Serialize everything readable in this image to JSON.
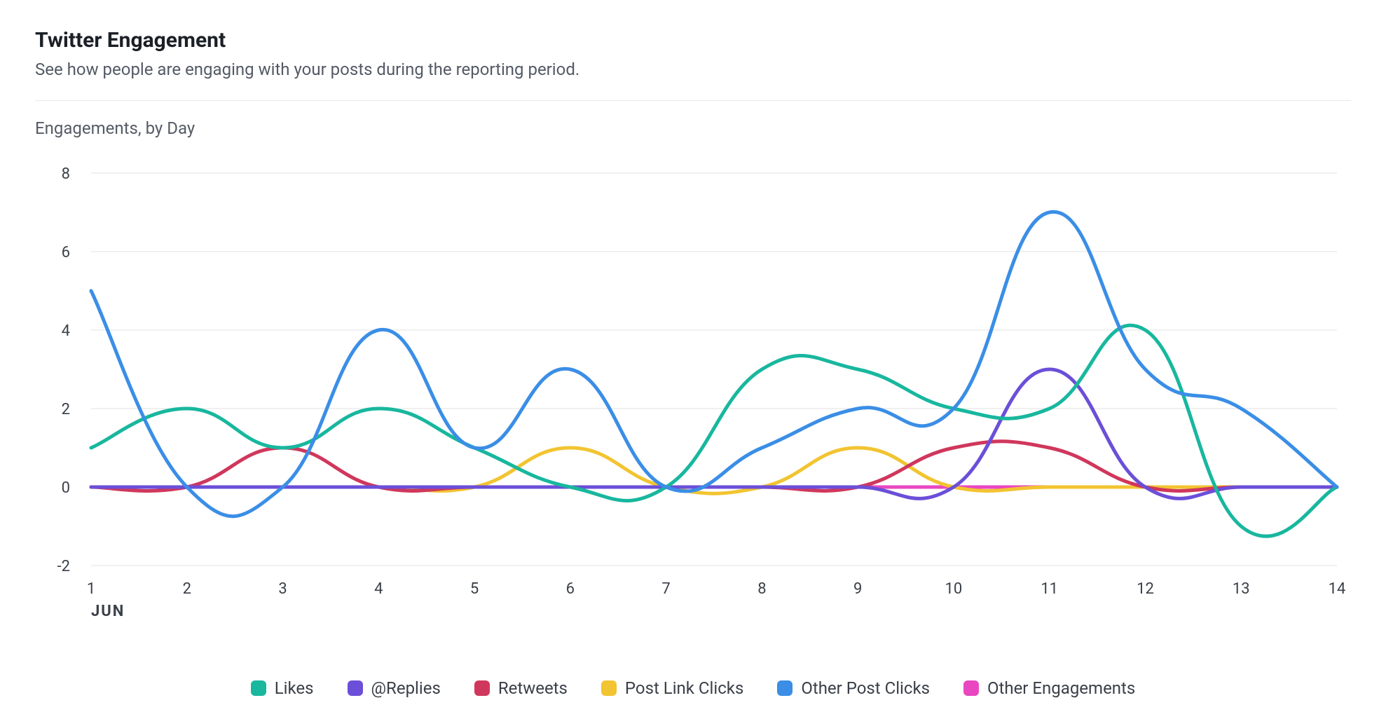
{
  "header": {
    "title": "Twitter Engagement",
    "subtitle": "See how people are engaging with your posts during the reporting period."
  },
  "chart": {
    "label": "Engagements, by Day",
    "type": "line",
    "x_month_label": "JUN",
    "x_labels": [
      "1",
      "2",
      "3",
      "4",
      "5",
      "6",
      "7",
      "8",
      "9",
      "10",
      "11",
      "12",
      "13",
      "14"
    ],
    "y_labels": [
      "-2",
      "0",
      "2",
      "4",
      "6",
      "8"
    ],
    "ylim": [
      -2,
      8
    ],
    "ytick_step": 2,
    "xlim": [
      1,
      14
    ],
    "background_color": "#ffffff",
    "grid_color": "#ececec",
    "line_width": 5,
    "colors": {
      "likes": "#18b79e",
      "replies": "#6b4fd8",
      "retweets": "#d0375c",
      "post_link_clicks": "#f2c431",
      "other_post_clicks": "#3a8ee6",
      "other_engagements": "#e847c1"
    },
    "series": {
      "other_engagements": [
        0,
        0,
        0,
        0,
        0,
        0,
        0,
        0,
        0,
        0,
        0,
        0,
        0,
        0
      ],
      "post_link_clicks": [
        0,
        0,
        0,
        0,
        0,
        1,
        0,
        0,
        1,
        0,
        0,
        0,
        0,
        0
      ],
      "retweets": [
        0,
        0,
        1,
        0,
        0,
        0,
        0,
        0,
        0,
        1,
        1,
        0,
        0,
        0
      ],
      "replies": [
        0,
        0,
        0,
        0,
        0,
        0,
        0,
        0,
        0,
        0,
        3,
        0,
        0,
        0
      ],
      "likes": [
        1,
        2,
        1,
        2,
        1,
        0,
        0,
        3,
        3,
        2,
        2,
        4,
        -1,
        0
      ],
      "other_post_clicks": [
        5,
        0,
        0,
        4,
        1,
        3,
        0,
        1,
        2,
        2,
        7,
        3,
        2,
        0
      ]
    },
    "legend": [
      {
        "key": "likes",
        "label": "Likes"
      },
      {
        "key": "replies",
        "label": "@Replies"
      },
      {
        "key": "retweets",
        "label": "Retweets"
      },
      {
        "key": "post_link_clicks",
        "label": "Post Link Clicks"
      },
      {
        "key": "other_post_clicks",
        "label": "Other Post Clicks"
      },
      {
        "key": "other_engagements",
        "label": "Other Engagements"
      }
    ]
  }
}
